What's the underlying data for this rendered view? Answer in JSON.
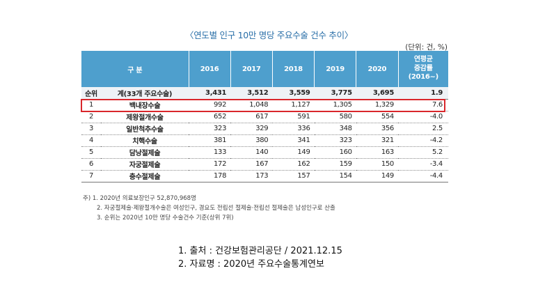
{
  "title": "〈연도별 인구 10만 명당 주요수술 건수 추이〉",
  "unit": "(단위: 건, %)",
  "table": {
    "header": {
      "category": "구 분",
      "years": [
        "2016",
        "2017",
        "2018",
        "2019",
        "2020"
      ],
      "rate_label": "연평균\n증감률\n(2016~)"
    },
    "subheader": {
      "rank": "순위",
      "total_label": "계(33개 주요수술)",
      "values": [
        "3,431",
        "3,512",
        "3,559",
        "3,775",
        "3,695"
      ],
      "rate": "1.9"
    },
    "rows": [
      {
        "rank": "1",
        "name": "백내장수술",
        "values": [
          "992",
          "1,048",
          "1,127",
          "1,305",
          "1,329"
        ],
        "rate": "7.6"
      },
      {
        "rank": "2",
        "name": "제왕절개수술",
        "values": [
          "652",
          "617",
          "591",
          "580",
          "554"
        ],
        "rate": "-4.0"
      },
      {
        "rank": "3",
        "name": "일반척추수술",
        "values": [
          "323",
          "329",
          "336",
          "348",
          "356"
        ],
        "rate": "2.5"
      },
      {
        "rank": "4",
        "name": "치핵수술",
        "values": [
          "381",
          "380",
          "341",
          "323",
          "321"
        ],
        "rate": "-4.2"
      },
      {
        "rank": "5",
        "name": "담낭절제술",
        "values": [
          "133",
          "140",
          "149",
          "160",
          "163"
        ],
        "rate": "5.2"
      },
      {
        "rank": "6",
        "name": "자궁절제술",
        "values": [
          "172",
          "167",
          "162",
          "159",
          "150"
        ],
        "rate": "-3.4"
      },
      {
        "rank": "7",
        "name": "충수절제술",
        "values": [
          "178",
          "173",
          "157",
          "154",
          "149"
        ],
        "rate": "-4.4"
      }
    ]
  },
  "notes": [
    "주) 1. 2020년 의료보장인구 52,870,968명",
    "2. 자궁절제술·제왕절개수술은 여성인구, 경요도 전립선 절제술·전립선 절제술은 남성인구로 산출",
    "3. 순위는 2020년 10만 명당 수술건수 기준(상위 7위)"
  ],
  "sources": [
    "1.   출처 : 건강보험관리공단 / 2021.12.15",
    "2.   자료명 : 2020년 주요수술통계연보"
  ]
}
